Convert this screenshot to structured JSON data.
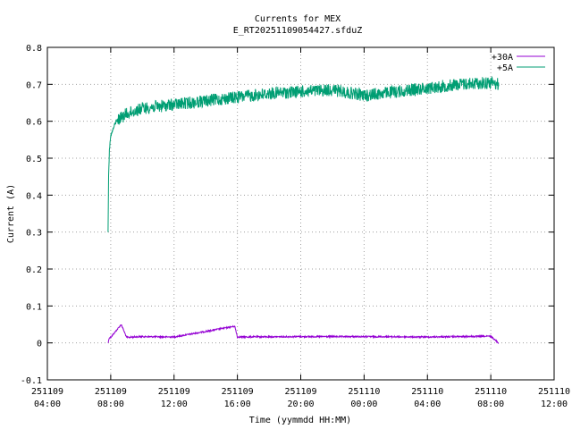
{
  "chart_data": {
    "type": "line",
    "title": "Currents for MEX",
    "subtitle": "E_RT20251109054427.sfduZ",
    "xlabel": "Time (yymmdd HH:MM)",
    "ylabel": "Current (A)",
    "xlim": [
      "2025-11-09 04:00",
      "2025-11-10 12:00"
    ],
    "ylim": [
      -0.1,
      0.8
    ],
    "grid": true,
    "legend_position": "top-right",
    "x_ticks": [
      {
        "date": "251109",
        "time": "04:00",
        "value": "2025-11-09 04:00"
      },
      {
        "date": "251109",
        "time": "08:00",
        "value": "2025-11-09 08:00"
      },
      {
        "date": "251109",
        "time": "12:00",
        "value": "2025-11-09 12:00"
      },
      {
        "date": "251109",
        "time": "16:00",
        "value": "2025-11-09 16:00"
      },
      {
        "date": "251109",
        "time": "20:00",
        "value": "2025-11-09 20:00"
      },
      {
        "date": "251110",
        "time": "00:00",
        "value": "2025-11-10 00:00"
      },
      {
        "date": "251110",
        "time": "04:00",
        "value": "2025-11-10 04:00"
      },
      {
        "date": "251110",
        "time": "08:00",
        "value": "2025-11-10 08:00"
      },
      {
        "date": "251110",
        "time": "12:00",
        "value": "2025-11-10 12:00"
      }
    ],
    "y_ticks": [
      "-0.1",
      "0",
      "0.1",
      "0.2",
      "0.3",
      "0.4",
      "0.5",
      "0.6",
      "0.7",
      "0.8"
    ],
    "series": [
      {
        "name": "+30A",
        "color": "#9400d3",
        "x": [
          "2025-11-09 07:50",
          "2025-11-09 07:55",
          "2025-11-09 08:00",
          "2025-11-09 08:40",
          "2025-11-09 09:00",
          "2025-11-09 10:00",
          "2025-11-09 12:00",
          "2025-11-09 15:50",
          "2025-11-09 16:00",
          "2025-11-09 20:00",
          "2025-11-10 00:00",
          "2025-11-10 04:00",
          "2025-11-10 08:00",
          "2025-11-10 08:30"
        ],
        "y": [
          0.0,
          0.015,
          0.015,
          0.05,
          0.015,
          0.017,
          0.016,
          0.045,
          0.016,
          0.017,
          0.017,
          0.016,
          0.018,
          0.0
        ]
      },
      {
        "name": "+5A",
        "color": "#009e73",
        "x": [
          "2025-11-09 07:50",
          "2025-11-09 07:52",
          "2025-11-09 07:55",
          "2025-11-09 08:00",
          "2025-11-09 08:20",
          "2025-11-09 09:00",
          "2025-11-09 10:00",
          "2025-11-09 12:00",
          "2025-11-09 14:00",
          "2025-11-09 16:00",
          "2025-11-09 18:00",
          "2025-11-09 20:00",
          "2025-11-09 22:00",
          "2025-11-10 00:00",
          "2025-11-10 02:00",
          "2025-11-10 04:00",
          "2025-11-10 06:00",
          "2025-11-10 08:00",
          "2025-11-10 08:30"
        ],
        "y": [
          0.3,
          0.45,
          0.52,
          0.56,
          0.6,
          0.62,
          0.635,
          0.645,
          0.655,
          0.665,
          0.675,
          0.68,
          0.685,
          0.67,
          0.68,
          0.69,
          0.7,
          0.705,
          0.7
        ]
      }
    ]
  }
}
